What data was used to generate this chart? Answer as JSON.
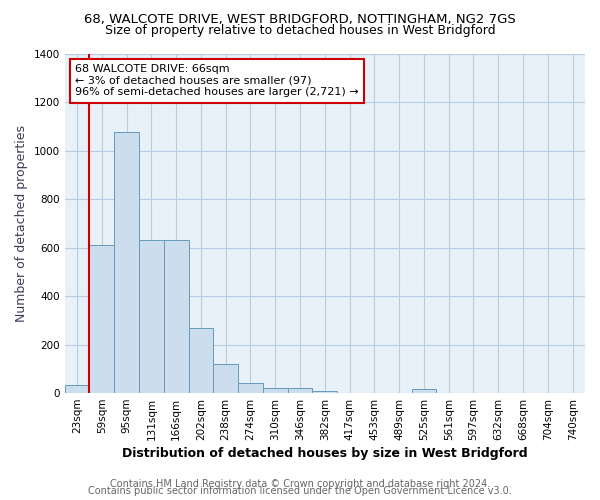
{
  "title": "68, WALCOTE DRIVE, WEST BRIDGFORD, NOTTINGHAM, NG2 7GS",
  "subtitle": "Size of property relative to detached houses in West Bridgford",
  "xlabel": "Distribution of detached houses by size in West Bridgford",
  "ylabel": "Number of detached properties",
  "footer1": "Contains HM Land Registry data © Crown copyright and database right 2024.",
  "footer2": "Contains public sector information licensed under the Open Government Licence v3.0.",
  "bar_labels": [
    "23sqm",
    "59sqm",
    "95sqm",
    "131sqm",
    "166sqm",
    "202sqm",
    "238sqm",
    "274sqm",
    "310sqm",
    "346sqm",
    "382sqm",
    "417sqm",
    "453sqm",
    "489sqm",
    "525sqm",
    "561sqm",
    "597sqm",
    "632sqm",
    "668sqm",
    "704sqm",
    "740sqm"
  ],
  "bar_values": [
    35,
    610,
    1080,
    630,
    630,
    270,
    120,
    40,
    20,
    20,
    10,
    0,
    0,
    0,
    15,
    0,
    0,
    0,
    0,
    0,
    0
  ],
  "bar_color": "#ccdded",
  "bar_edge_color": "#6699bb",
  "property_line_bar_index": 1,
  "property_line_color": "#cc0000",
  "annotation_text": "68 WALCOTE DRIVE: 66sqm\n← 3% of detached houses are smaller (97)\n96% of semi-detached houses are larger (2,721) →",
  "annotation_box_color": "#ffffff",
  "annotation_box_edge": "#cc0000",
  "ylim": [
    0,
    1400
  ],
  "yticks": [
    0,
    200,
    400,
    600,
    800,
    1000,
    1200,
    1400
  ],
  "bg_color": "#ffffff",
  "grid_color": "#b8cde0",
  "title_fontsize": 9.5,
  "subtitle_fontsize": 9,
  "axis_label_fontsize": 9,
  "tick_fontsize": 7.5,
  "footer_fontsize": 7
}
